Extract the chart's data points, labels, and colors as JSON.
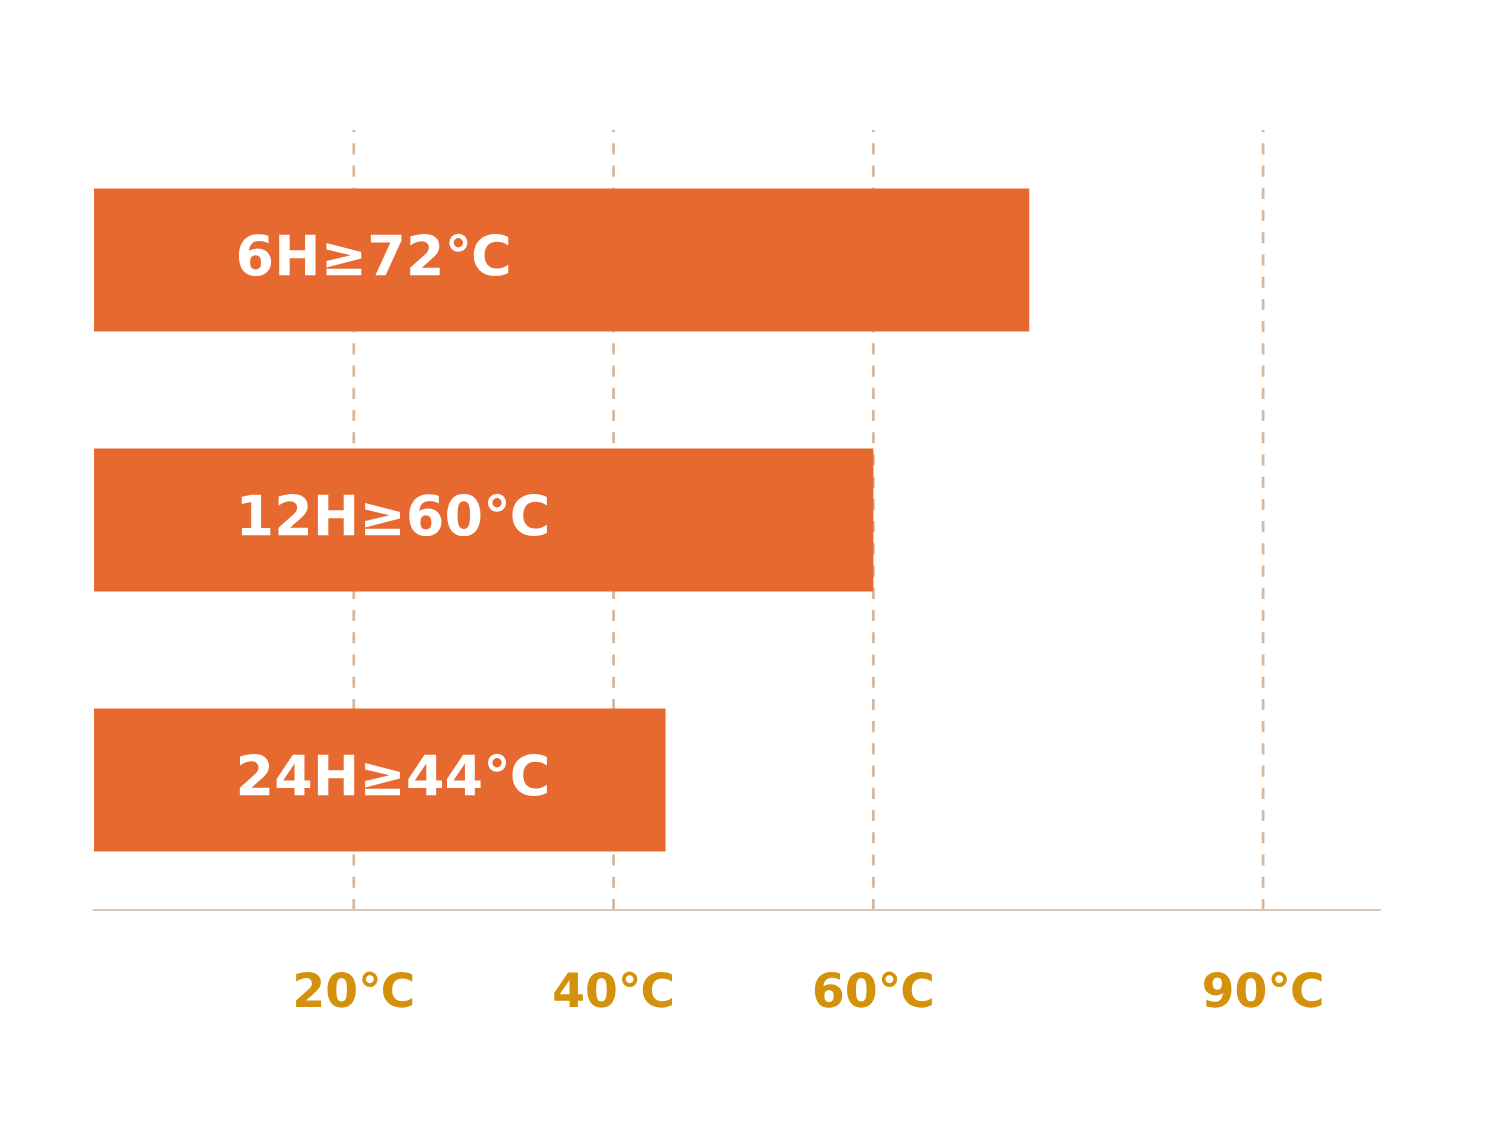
{
  "chart_data": {
    "type": "bar",
    "orientation": "horizontal",
    "categories": [
      null,
      null,
      null
    ],
    "values": [
      72,
      60,
      44
    ],
    "value_labels": [
      "6H≥72℃",
      "12H≥60℃",
      "24H≥44℃"
    ],
    "color": "#e66a30",
    "xlim": [
      0,
      99
    ],
    "xticks": [
      {
        "value": 20,
        "label": "20℃"
      },
      {
        "value": 40,
        "label": "40℃"
      },
      {
        "value": 60,
        "label": "60℃"
      },
      {
        "value": 90,
        "label": "90℃"
      }
    ],
    "grid": "x",
    "tick_labels": "x"
  }
}
